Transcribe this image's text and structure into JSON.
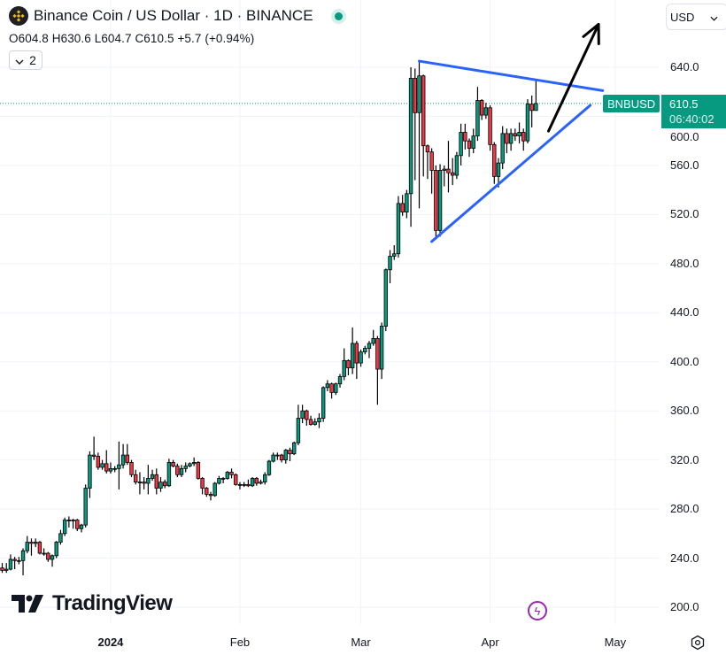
{
  "header": {
    "title": "Binance Coin / US Dollar · 1D · BINANCE",
    "ohlc": "O604.8 H630.6 L604.7 C610.5 +5.7 (+0.94%)",
    "indicators_collapse_count": "2",
    "currency": "USD"
  },
  "last_price": {
    "symbol": "BNBUSD",
    "price": "610.5",
    "countdown": "06:40:02"
  },
  "branding": "TradingView",
  "colors": {
    "up": "#089981",
    "down": "#f23645",
    "trendline": "#2962ff",
    "arrow": "#000000",
    "grid": "#f0f3fa"
  },
  "chart_data": {
    "type": "candlestick",
    "symbol": "BNBUSD",
    "interval": "1D",
    "first_date": "2023-12-06",
    "ylim": [
      190,
      660
    ],
    "grid": true,
    "y_ticks": [
      "640.0",
      "600.0",
      "560.0",
      "520.0",
      "480.0",
      "440.0",
      "400.0",
      "360.0",
      "320.0",
      "280.0",
      "240.0",
      "200.0"
    ],
    "x_ticks": [
      {
        "label": "2024",
        "date": "2024-01-01",
        "bold": true
      },
      {
        "label": "Feb",
        "date": "2024-02-01"
      },
      {
        "label": "Mar",
        "date": "2024-03-01"
      },
      {
        "label": "Apr",
        "date": "2024-04-01"
      },
      {
        "label": "May",
        "date": "2024-05-01"
      }
    ],
    "candles_ohlc": [
      [
        232,
        236,
        228,
        230
      ],
      [
        230,
        236,
        228,
        231
      ],
      [
        231,
        243,
        230,
        239
      ],
      [
        239,
        241,
        231,
        238
      ],
      [
        238,
        241,
        235,
        238
      ],
      [
        238,
        248,
        226,
        246
      ],
      [
        246,
        258,
        244,
        253
      ],
      [
        253,
        256,
        242,
        252
      ],
      [
        252,
        256,
        249,
        253
      ],
      [
        253,
        254,
        243,
        244
      ],
      [
        244,
        248,
        242,
        244
      ],
      [
        244,
        245,
        237,
        239
      ],
      [
        239,
        243,
        233,
        242
      ],
      [
        242,
        254,
        240,
        253
      ],
      [
        253,
        263,
        251,
        260
      ],
      [
        260,
        273,
        258,
        271
      ],
      [
        271,
        274,
        265,
        271
      ],
      [
        271,
        272,
        264,
        271
      ],
      [
        271,
        272,
        262,
        264
      ],
      [
        264,
        268,
        261,
        267
      ],
      [
        267,
        300,
        265,
        297
      ],
      [
        297,
        327,
        289,
        324
      ],
      [
        324,
        339,
        320,
        323
      ],
      [
        323,
        326,
        312,
        314
      ],
      [
        314,
        320,
        312,
        317
      ],
      [
        317,
        328,
        309,
        311
      ],
      [
        311,
        318,
        309,
        313
      ],
      [
        313,
        315,
        310,
        313
      ],
      [
        313,
        335,
        296,
        316
      ],
      [
        316,
        333,
        313,
        324
      ],
      [
        324,
        333,
        316,
        318
      ],
      [
        318,
        320,
        306,
        308
      ],
      [
        308,
        312,
        300,
        302
      ],
      [
        302,
        310,
        292,
        302
      ],
      [
        302,
        306,
        296,
        301
      ],
      [
        301,
        316,
        292,
        305
      ],
      [
        305,
        312,
        303,
        308
      ],
      [
        308,
        313,
        292,
        297
      ],
      [
        297,
        306,
        294,
        302
      ],
      [
        302,
        304,
        297,
        299
      ],
      [
        299,
        321,
        298,
        318
      ],
      [
        318,
        320,
        314,
        315
      ],
      [
        315,
        317,
        306,
        308
      ],
      [
        308,
        316,
        306,
        313
      ],
      [
        313,
        318,
        310,
        315
      ],
      [
        315,
        318,
        314,
        317
      ],
      [
        317,
        322,
        315,
        318
      ],
      [
        318,
        319,
        304,
        305
      ],
      [
        305,
        306,
        292,
        297
      ],
      [
        297,
        298,
        290,
        292
      ],
      [
        292,
        294,
        287,
        291
      ],
      [
        291,
        302,
        290,
        301
      ],
      [
        301,
        307,
        300,
        305
      ],
      [
        305,
        306,
        301,
        305
      ],
      [
        305,
        311,
        304,
        310
      ],
      [
        310,
        313,
        305,
        308
      ],
      [
        308,
        309,
        299,
        300
      ],
      [
        300,
        302,
        296,
        300
      ],
      [
        300,
        302,
        298,
        300
      ],
      [
        300,
        304,
        298,
        299
      ],
      [
        299,
        306,
        298,
        305
      ],
      [
        305,
        306,
        299,
        301
      ],
      [
        301,
        304,
        300,
        302
      ],
      [
        302,
        310,
        300,
        308
      ],
      [
        308,
        320,
        307,
        319
      ],
      [
        319,
        326,
        318,
        324
      ],
      [
        324,
        326,
        320,
        324
      ],
      [
        324,
        325,
        318,
        320
      ],
      [
        320,
        329,
        317,
        328
      ],
      [
        328,
        330,
        319,
        325
      ],
      [
        325,
        335,
        324,
        334
      ],
      [
        334,
        365,
        332,
        354
      ],
      [
        354,
        365,
        350,
        360
      ],
      [
        360,
        361,
        348,
        353
      ],
      [
        353,
        356,
        348,
        349
      ],
      [
        349,
        354,
        348,
        351
      ],
      [
        351,
        358,
        346,
        354
      ],
      [
        354,
        380,
        351,
        379
      ],
      [
        379,
        385,
        376,
        382
      ],
      [
        382,
        383,
        370,
        375
      ],
      [
        375,
        383,
        373,
        382
      ],
      [
        382,
        390,
        379,
        388
      ],
      [
        388,
        411,
        385,
        401
      ],
      [
        401,
        402,
        389,
        395
      ],
      [
        395,
        428,
        390,
        415
      ],
      [
        415,
        417,
        386,
        399
      ],
      [
        399,
        410,
        396,
        408
      ],
      [
        408,
        413,
        406,
        411
      ],
      [
        411,
        417,
        403,
        415
      ],
      [
        415,
        426,
        413,
        419
      ],
      [
        419,
        421,
        365,
        394
      ],
      [
        394,
        432,
        386,
        429
      ],
      [
        429,
        476,
        425,
        475
      ],
      [
        475,
        491,
        464,
        486
      ],
      [
        486,
        495,
        483,
        488
      ],
      [
        488,
        535,
        485,
        529
      ],
      [
        529,
        536,
        519,
        522
      ],
      [
        522,
        540,
        517,
        537
      ],
      [
        537,
        640,
        510,
        631
      ],
      [
        631,
        639,
        548,
        603
      ],
      [
        603,
        646,
        525,
        633
      ],
      [
        633,
        634,
        551,
        576
      ],
      [
        576,
        577,
        549,
        571
      ],
      [
        571,
        574,
        537,
        556
      ],
      [
        556,
        560,
        500,
        507
      ],
      [
        507,
        561,
        502,
        556
      ],
      [
        556,
        560,
        543,
        557
      ],
      [
        557,
        580,
        538,
        554
      ],
      [
        554,
        566,
        544,
        552
      ],
      [
        552,
        571,
        549,
        568
      ],
      [
        568,
        594,
        560,
        587
      ],
      [
        587,
        594,
        573,
        580
      ],
      [
        580,
        582,
        567,
        574
      ],
      [
        574,
        590,
        570,
        584
      ],
      [
        584,
        624,
        580,
        613
      ],
      [
        613,
        614,
        597,
        601
      ],
      [
        601,
        611,
        598,
        607
      ],
      [
        607,
        609,
        572,
        577
      ],
      [
        577,
        579,
        545,
        551
      ],
      [
        551,
        566,
        542,
        562
      ],
      [
        562,
        592,
        557,
        586
      ],
      [
        586,
        590,
        570,
        578
      ],
      [
        578,
        590,
        572,
        586
      ],
      [
        586,
        590,
        580,
        584
      ],
      [
        584,
        595,
        578,
        587
      ],
      [
        587,
        590,
        572,
        580
      ],
      [
        580,
        614,
        578,
        610
      ],
      [
        610,
        617,
        591,
        604.8
      ],
      [
        604.8,
        630.6,
        604.7,
        610.5
      ]
    ],
    "last_price_line": 610.5,
    "drawings": [
      {
        "type": "trendline",
        "name": "upper",
        "from": [
          "2024-03-15",
          645
        ],
        "to": [
          "2024-04-28",
          621
        ]
      },
      {
        "type": "trendline",
        "name": "lower",
        "from": [
          "2024-03-18",
          498
        ],
        "to": [
          "2024-04-25",
          609
        ]
      },
      {
        "type": "arrow",
        "from": [
          "2024-04-15",
          588
        ],
        "to": [
          "2024-04-27",
          675
        ]
      }
    ]
  }
}
